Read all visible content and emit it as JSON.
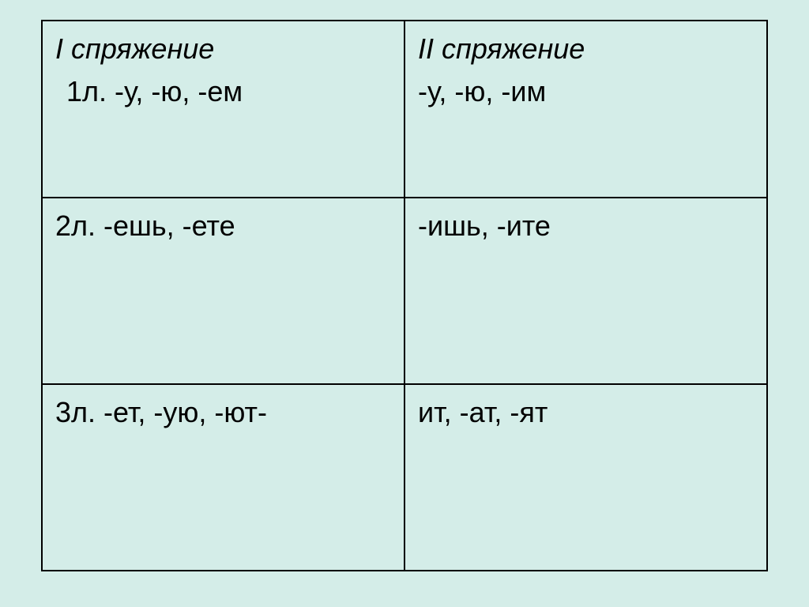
{
  "table": {
    "background_color": "#d4ede8",
    "border_color": "#000000",
    "font_size": 36,
    "rows": [
      {
        "col1": {
          "header": "I спряжение",
          "content": "1л. -у, -ю, -ем"
        },
        "col2": {
          "header": "II спряжение",
          "content": "-у, -ю, -им"
        }
      },
      {
        "col1": {
          "content": "2л. -ешь, -ете"
        },
        "col2": {
          "content": "-ишь, -ите"
        }
      },
      {
        "col1": {
          "content": "3л. -ет, -ую, -ют-"
        },
        "col2": {
          "content": "ит, -ат, -ят"
        }
      }
    ]
  }
}
